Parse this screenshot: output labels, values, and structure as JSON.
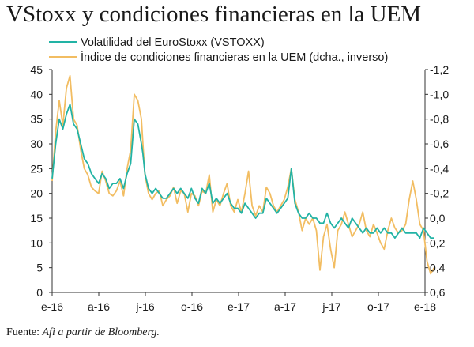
{
  "title": "VStoxx y condiciones financieras en la UEM",
  "source": {
    "prefix": "Fuente: ",
    "text": "Afi a partir de Bloomberg."
  },
  "colors": {
    "vstoxx": "#22b3a5",
    "fci": "#f2bd62",
    "axis": "#333333"
  },
  "chart_data": {
    "type": "line",
    "title": "VStoxx y condiciones financieras en la UEM",
    "legend_position": "top-left",
    "grid": false,
    "x_ticks": [
      "e-16",
      "a-16",
      "j-16",
      "o-16",
      "e-17",
      "a-17",
      "j-17",
      "o-17",
      "e-18"
    ],
    "y_left": {
      "lim": [
        0,
        45
      ],
      "ticks": [
        "45",
        "40",
        "35",
        "30",
        "25",
        "20",
        "15",
        "10",
        "5",
        "0"
      ]
    },
    "y_right": {
      "lim": [
        0.6,
        -1.2
      ],
      "inverted": true,
      "ticks": [
        "-1,2",
        "-1,0",
        "-0,8",
        "-0,6",
        "-0,4",
        "-0,2",
        "0,0",
        "0,2",
        "0,4",
        "0,6"
      ]
    },
    "series": [
      {
        "name": "Volatilidad del EuroStoxx (VSTOXX)",
        "axis": "left",
        "x": [
          "2016-01-01",
          "2016-01-08",
          "2016-01-15",
          "2016-01-22",
          "2016-01-29",
          "2016-02-05",
          "2016-02-12",
          "2016-02-19",
          "2016-02-26",
          "2016-03-04",
          "2016-03-11",
          "2016-03-18",
          "2016-03-25",
          "2016-04-01",
          "2016-04-08",
          "2016-04-15",
          "2016-04-22",
          "2016-04-29",
          "2016-05-06",
          "2016-05-13",
          "2016-05-20",
          "2016-05-27",
          "2016-06-03",
          "2016-06-10",
          "2016-06-17",
          "2016-06-24",
          "2016-06-27",
          "2016-07-01",
          "2016-07-08",
          "2016-07-15",
          "2016-07-22",
          "2016-07-29",
          "2016-08-05",
          "2016-08-12",
          "2016-08-19",
          "2016-08-26",
          "2016-09-02",
          "2016-09-09",
          "2016-09-16",
          "2016-09-23",
          "2016-09-30",
          "2016-10-07",
          "2016-10-14",
          "2016-10-21",
          "2016-10-28",
          "2016-11-04",
          "2016-11-11",
          "2016-11-18",
          "2016-11-25",
          "2016-12-02",
          "2016-12-09",
          "2016-12-16",
          "2016-12-23",
          "2016-12-30",
          "2017-01-06",
          "2017-01-13",
          "2017-01-20",
          "2017-01-27",
          "2017-02-03",
          "2017-02-10",
          "2017-02-17",
          "2017-02-24",
          "2017-03-03",
          "2017-03-10",
          "2017-03-17",
          "2017-03-24",
          "2017-03-31",
          "2017-04-07",
          "2017-04-14",
          "2017-04-21",
          "2017-04-28",
          "2017-05-05",
          "2017-05-12",
          "2017-05-19",
          "2017-05-26",
          "2017-06-02",
          "2017-06-09",
          "2017-06-16",
          "2017-06-23",
          "2017-06-30",
          "2017-07-07",
          "2017-07-14",
          "2017-07-21",
          "2017-07-28",
          "2017-08-04",
          "2017-08-11",
          "2017-08-18",
          "2017-08-25",
          "2017-09-01",
          "2017-09-08",
          "2017-09-15",
          "2017-09-22",
          "2017-09-29",
          "2017-10-06",
          "2017-10-13",
          "2017-10-20",
          "2017-10-27",
          "2017-11-03",
          "2017-11-10",
          "2017-11-17",
          "2017-11-24",
          "2017-12-01",
          "2017-12-08",
          "2017-12-15",
          "2017-12-22",
          "2017-12-29",
          "2018-01-05",
          "2018-01-12",
          "2018-01-19"
        ],
        "y": [
          23,
          30,
          35,
          33,
          36,
          38,
          34,
          33,
          30,
          27,
          26,
          24,
          23,
          22,
          24,
          23,
          21,
          22,
          22,
          23,
          21,
          24,
          26,
          35,
          34,
          30,
          28,
          24,
          21,
          20,
          21,
          20,
          19,
          19,
          20,
          21,
          20,
          21,
          20,
          19,
          21,
          19,
          18,
          21,
          20,
          22,
          18,
          19,
          18,
          19,
          20,
          18,
          17,
          17,
          16,
          18,
          17,
          16,
          15,
          16,
          16,
          19,
          18,
          17,
          16,
          17,
          18,
          19,
          25,
          18,
          16,
          15,
          15,
          16,
          15,
          15,
          14,
          14,
          16,
          14,
          13,
          14,
          15,
          14,
          13,
          15,
          14,
          13,
          12,
          13,
          12,
          12,
          13,
          12,
          13,
          12,
          12,
          11,
          12,
          13,
          12,
          12,
          12,
          12,
          11,
          13,
          12,
          11,
          11
        ]
      },
      {
        "name": "Índice de condiciones financieras en la UEM (dcha., inverso)",
        "axis": "right",
        "x": [
          "2016-01-01",
          "2016-01-08",
          "2016-01-15",
          "2016-01-22",
          "2016-01-29",
          "2016-02-05",
          "2016-02-12",
          "2016-02-19",
          "2016-02-26",
          "2016-03-04",
          "2016-03-11",
          "2016-03-18",
          "2016-03-25",
          "2016-04-01",
          "2016-04-08",
          "2016-04-15",
          "2016-04-22",
          "2016-04-29",
          "2016-05-06",
          "2016-05-13",
          "2016-05-20",
          "2016-05-27",
          "2016-06-03",
          "2016-06-10",
          "2016-06-17",
          "2016-06-24",
          "2016-06-27",
          "2016-07-01",
          "2016-07-08",
          "2016-07-15",
          "2016-07-22",
          "2016-07-29",
          "2016-08-05",
          "2016-08-12",
          "2016-08-19",
          "2016-08-26",
          "2016-09-02",
          "2016-09-09",
          "2016-09-16",
          "2016-09-23",
          "2016-09-30",
          "2016-10-07",
          "2016-10-14",
          "2016-10-21",
          "2016-10-28",
          "2016-11-04",
          "2016-11-11",
          "2016-11-18",
          "2016-11-25",
          "2016-12-02",
          "2016-12-09",
          "2016-12-16",
          "2016-12-23",
          "2016-12-30",
          "2017-01-06",
          "2017-01-13",
          "2017-01-20",
          "2017-01-27",
          "2017-02-03",
          "2017-02-10",
          "2017-02-17",
          "2017-02-24",
          "2017-03-03",
          "2017-03-10",
          "2017-03-17",
          "2017-03-24",
          "2017-03-31",
          "2017-04-07",
          "2017-04-14",
          "2017-04-21",
          "2017-04-28",
          "2017-05-05",
          "2017-05-12",
          "2017-05-19",
          "2017-05-26",
          "2017-06-02",
          "2017-06-09",
          "2017-06-16",
          "2017-06-23",
          "2017-06-30",
          "2017-07-07",
          "2017-07-14",
          "2017-07-21",
          "2017-07-28",
          "2017-08-04",
          "2017-08-11",
          "2017-08-18",
          "2017-08-25",
          "2017-09-01",
          "2017-09-08",
          "2017-09-15",
          "2017-09-22",
          "2017-09-29",
          "2017-10-06",
          "2017-10-13",
          "2017-10-20",
          "2017-10-27",
          "2017-11-03",
          "2017-11-10",
          "2017-11-17",
          "2017-11-24",
          "2017-12-01",
          "2017-12-08",
          "2017-12-15",
          "2017-12-22",
          "2017-12-29",
          "2018-01-05",
          "2018-01-12",
          "2018-01-19"
        ],
        "y": [
          -0.3,
          -0.7,
          -0.95,
          -0.75,
          -1.05,
          -1.15,
          -0.8,
          -0.75,
          -0.55,
          -0.4,
          -0.35,
          -0.25,
          -0.22,
          -0.2,
          -0.38,
          -0.3,
          -0.2,
          -0.18,
          -0.22,
          -0.3,
          -0.18,
          -0.4,
          -0.55,
          -1.0,
          -0.95,
          -0.8,
          -0.6,
          -0.35,
          -0.2,
          -0.15,
          -0.2,
          -0.22,
          -0.1,
          -0.15,
          -0.18,
          -0.25,
          -0.12,
          -0.22,
          -0.2,
          -0.05,
          -0.2,
          -0.18,
          -0.1,
          -0.22,
          -0.2,
          -0.35,
          -0.05,
          -0.15,
          -0.1,
          -0.2,
          -0.28,
          -0.1,
          -0.05,
          -0.15,
          -0.05,
          -0.2,
          -0.38,
          -0.1,
          -0.02,
          -0.1,
          -0.05,
          -0.25,
          -0.2,
          -0.1,
          -0.05,
          -0.1,
          -0.15,
          -0.25,
          -0.4,
          -0.15,
          -0.05,
          0.1,
          0.0,
          0.05,
          0.0,
          0.1,
          0.42,
          0.15,
          0.05,
          0.25,
          0.4,
          0.1,
          0.05,
          -0.05,
          0.05,
          0.15,
          0.1,
          0.05,
          -0.05,
          0.1,
          0.15,
          0.05,
          0.12,
          0.2,
          0.25,
          0.1,
          0.0,
          0.08,
          0.12,
          0.1,
          0.05,
          -0.15,
          -0.3,
          -0.15,
          0.05,
          0.1,
          0.35,
          0.45,
          0.4
        ]
      }
    ]
  }
}
